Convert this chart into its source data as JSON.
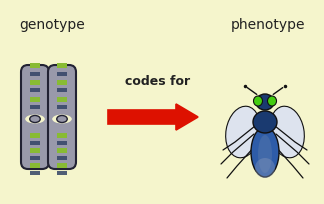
{
  "bg_color": "#f5f5cc",
  "text_genotype": "genotype",
  "text_phenotype": "phenotype",
  "text_codes_for": "codes for",
  "text_color": "#222222",
  "arrow_color": "#dd1100",
  "chrom_body_color": "#9999aa",
  "chrom_outline": "#222233",
  "band_green": "#88bb33",
  "band_dark": "#334466",
  "fly_body_dark": "#1a3a70",
  "fly_body_blue": "#2e5ca8",
  "fly_abdomen_stripe": "#5577aa",
  "fly_wing": "#dde3ee",
  "fly_wing_edge": "#aabbcc",
  "fly_eye_green": "#44cc11",
  "fly_head_dark": "#1a3060",
  "fly_outline": "#111111",
  "figsize": [
    3.24,
    2.05
  ],
  "dpi": 100
}
